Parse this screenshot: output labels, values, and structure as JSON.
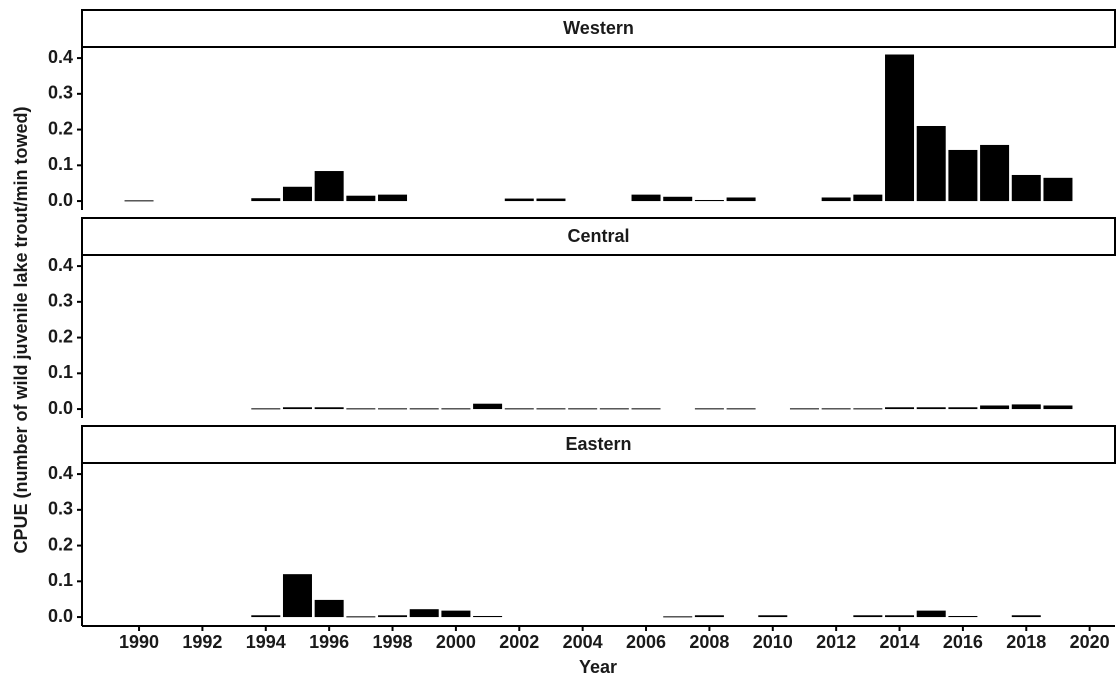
{
  "xlabel": "Year",
  "ylabel": "CPUE (number of wild juvenile lake trout/min towed)",
  "chart_data": [
    {
      "type": "bar",
      "title": "Western",
      "color": "#000000",
      "x": [
        1990,
        1991,
        1992,
        1993,
        1994,
        1995,
        1996,
        1997,
        1998,
        1999,
        2000,
        2001,
        2002,
        2003,
        2004,
        2005,
        2006,
        2007,
        2008,
        2009,
        2010,
        2011,
        2012,
        2013,
        2014,
        2015,
        2016,
        2017,
        2018,
        2019
      ],
      "values": [
        0.002,
        null,
        null,
        null,
        0.008,
        0.04,
        0.084,
        0.015,
        0.018,
        null,
        null,
        null,
        0.007,
        0.007,
        null,
        null,
        0.018,
        0.012,
        0.003,
        0.01,
        null,
        null,
        0.01,
        0.018,
        0.41,
        0.21,
        0.143,
        0.157,
        0.073,
        0.065
      ],
      "xlim": [
        1988.2,
        2020.8
      ],
      "ylim": [
        -0.025,
        0.431
      ],
      "yticks": [
        {
          "value": 0,
          "label": "0.0"
        },
        0.1,
        0.2,
        0.3,
        0.4
      ]
    },
    {
      "type": "bar",
      "title": "Central",
      "color": "#000000",
      "x": [
        1990,
        1991,
        1992,
        1993,
        1994,
        1995,
        1996,
        1997,
        1998,
        1999,
        2000,
        2001,
        2002,
        2003,
        2004,
        2005,
        2006,
        2007,
        2008,
        2009,
        2010,
        2011,
        2012,
        2013,
        2014,
        2015,
        2016,
        2017,
        2018,
        2019
      ],
      "values": [
        null,
        null,
        null,
        null,
        0.002,
        0.005,
        0.005,
        0.002,
        0.002,
        0.002,
        0.002,
        0.015,
        0.002,
        0.002,
        0.002,
        0.002,
        0.002,
        null,
        0.002,
        0.002,
        null,
        0.002,
        0.002,
        0.002,
        0.005,
        0.005,
        0.005,
        0.01,
        0.013,
        0.01
      ],
      "xlim": [
        1988.2,
        2020.8
      ],
      "ylim": [
        -0.025,
        0.431
      ],
      "yticks": [
        {
          "value": 0,
          "label": "0.0"
        },
        0.1,
        0.2,
        0.3,
        0.4
      ]
    },
    {
      "type": "bar",
      "title": "Eastern",
      "color": "#000000",
      "x": [
        1990,
        1991,
        1992,
        1993,
        1994,
        1995,
        1996,
        1997,
        1998,
        1999,
        2000,
        2001,
        2002,
        2003,
        2004,
        2005,
        2006,
        2007,
        2008,
        2009,
        2010,
        2011,
        2012,
        2013,
        2014,
        2015,
        2016,
        2017,
        2018,
        2019
      ],
      "values": [
        null,
        null,
        null,
        null,
        0.005,
        0.12,
        0.048,
        0.002,
        0.005,
        0.022,
        0.018,
        0.003,
        null,
        null,
        null,
        null,
        null,
        0.002,
        0.005,
        null,
        0.005,
        null,
        null,
        0.005,
        0.005,
        0.018,
        0.003,
        null,
        0.005,
        null
      ],
      "xlim": [
        1988.2,
        2020.8
      ],
      "ylim": [
        -0.025,
        0.431
      ],
      "yticks": [
        {
          "value": 0,
          "label": "0.0"
        },
        0.1,
        0.2,
        0.3,
        0.4
      ],
      "xticks": [
        1990,
        1992,
        1994,
        1996,
        1998,
        2000,
        2002,
        2004,
        2006,
        2008,
        2010,
        2012,
        2014,
        2016,
        2018,
        2020
      ]
    }
  ]
}
